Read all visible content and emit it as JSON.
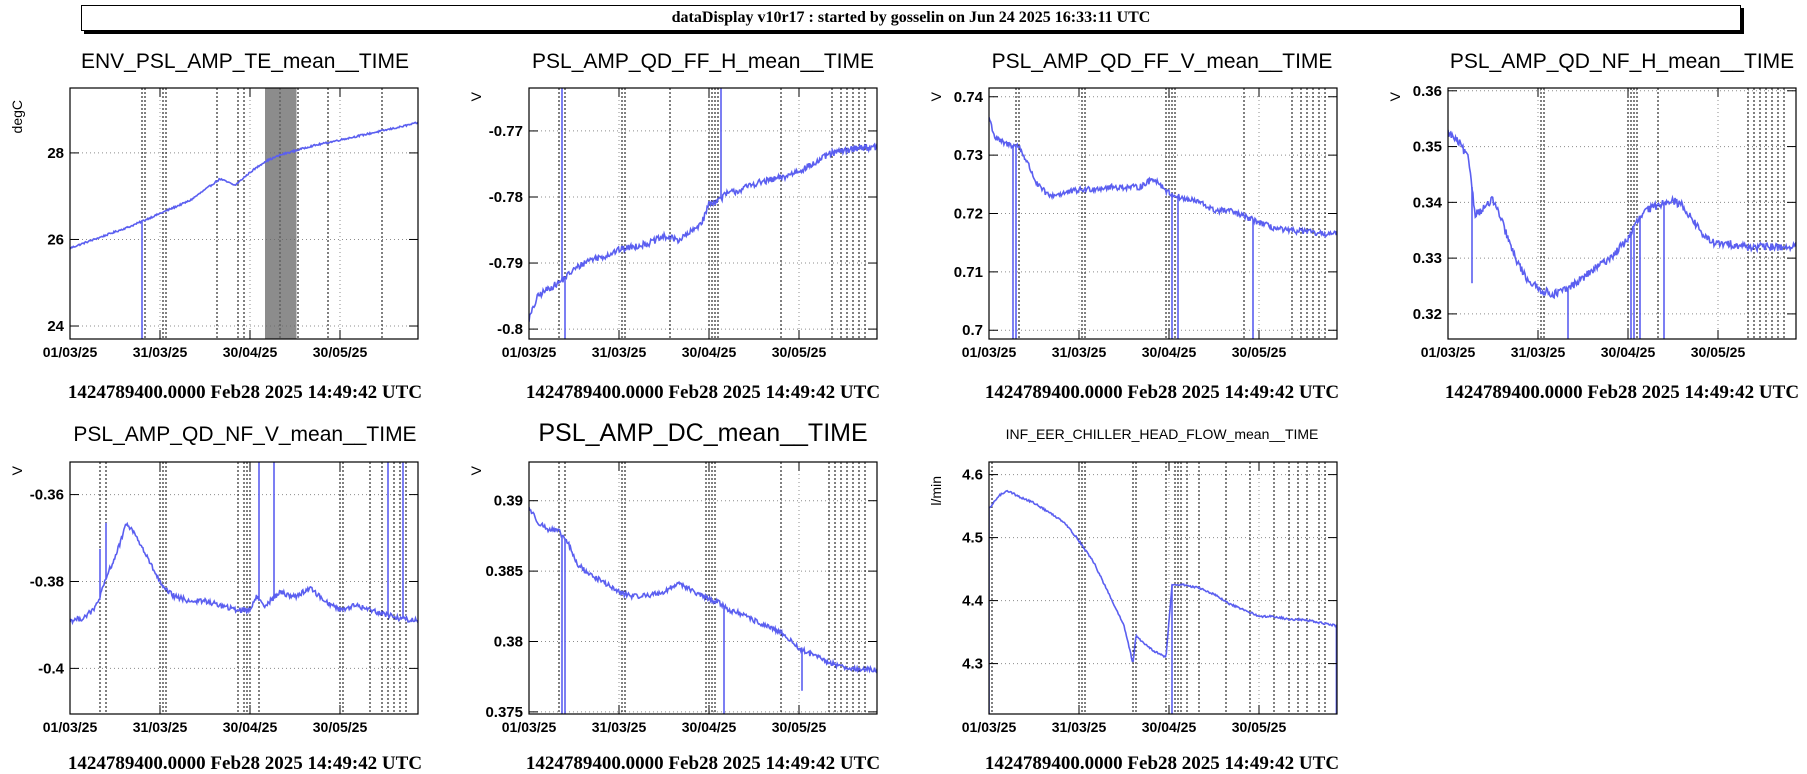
{
  "banner": {
    "text": "dataDisplay v10r17 : started by gosselin on Jun 24 2025 16:33:11 UTC"
  },
  "colors": {
    "line": "#5b5ff0",
    "marker": "#000000",
    "grid": "#8c8c8c",
    "background": "#ffffff"
  },
  "x_axis": {
    "ticks": [
      "01/03/25",
      "31/03/25",
      "30/04/25",
      "30/05/25"
    ],
    "tick_days": [
      0,
      30,
      60,
      90
    ],
    "range_days": [
      0,
      116
    ]
  },
  "footer_text": "1424789400.0000 Feb28 2025 14:49:42 UTC",
  "chart_data": [
    {
      "type": "line",
      "title": "ENV_PSL_AMP_TE_mean__TIME",
      "ylabel": "degC",
      "ylim": [
        23.7,
        29.5
      ],
      "yticks": [
        24,
        26,
        28
      ],
      "ytick_labels": [
        "24",
        "26",
        "28"
      ],
      "grid": true,
      "markers": [
        0,
        24,
        25,
        31,
        32,
        49,
        56,
        58,
        70,
        76,
        86,
        104
      ],
      "shaded": [
        [
          65,
          75.5
        ]
      ],
      "x": [
        0,
        10,
        20,
        30,
        40,
        45,
        50,
        55,
        60,
        65,
        70,
        75,
        80,
        90,
        100,
        110,
        116
      ],
      "values": [
        25.8,
        26.05,
        26.3,
        26.6,
        26.9,
        27.15,
        27.4,
        27.25,
        27.55,
        27.8,
        27.95,
        28.05,
        28.15,
        28.3,
        28.45,
        28.6,
        28.7
      ],
      "spikes": [
        [
          24,
          23.7
        ]
      ],
      "noise": 0.02
    },
    {
      "type": "line",
      "title": "PSL_AMP_QD_FF_H_mean__TIME",
      "ylabel": "V",
      "ylim": [
        -0.8015,
        -0.7635
      ],
      "yticks": [
        -0.8,
        -0.79,
        -0.78,
        -0.77
      ],
      "ytick_labels": [
        "-0.8",
        "-0.79",
        "-0.78",
        "-0.77"
      ],
      "grid": true,
      "markers": [
        0,
        10,
        12,
        31,
        32,
        47,
        60,
        61,
        62,
        63,
        84,
        101,
        104,
        106,
        108,
        110,
        112
      ],
      "x": [
        0,
        3,
        6,
        10,
        15,
        20,
        25,
        30,
        35,
        40,
        45,
        50,
        55,
        58,
        60,
        63,
        66,
        70,
        75,
        80,
        85,
        90,
        95,
        100,
        105,
        110,
        116
      ],
      "values": [
        -0.7985,
        -0.795,
        -0.794,
        -0.793,
        -0.791,
        -0.7895,
        -0.789,
        -0.788,
        -0.7875,
        -0.787,
        -0.786,
        -0.7865,
        -0.785,
        -0.7835,
        -0.781,
        -0.7805,
        -0.7795,
        -0.779,
        -0.778,
        -0.7775,
        -0.777,
        -0.776,
        -0.775,
        -0.7735,
        -0.773,
        -0.7725,
        -0.7725
      ],
      "spikes": [
        [
          11,
          -0.763
        ],
        [
          12,
          -0.8015
        ],
        [
          64,
          -0.763
        ]
      ],
      "noise": 0.0005
    },
    {
      "type": "line",
      "title": "PSL_AMP_QD_FF_V_mean__TIME",
      "ylabel": "V",
      "ylim": [
        0.6985,
        0.7415
      ],
      "yticks": [
        0.7,
        0.71,
        0.72,
        0.73,
        0.74
      ],
      "ytick_labels": [
        "0.7",
        "0.71",
        "0.72",
        "0.73",
        "0.74"
      ],
      "grid": true,
      "markers": [
        0,
        9,
        10,
        31,
        32,
        59,
        60,
        61,
        62,
        85,
        101,
        104,
        106,
        108,
        110,
        112
      ],
      "x": [
        0,
        2,
        5,
        10,
        13,
        16,
        20,
        25,
        30,
        40,
        50,
        55,
        60,
        65,
        70,
        75,
        80,
        85,
        90,
        95,
        100,
        105,
        110,
        116
      ],
      "values": [
        0.7365,
        0.733,
        0.732,
        0.7315,
        0.7285,
        0.725,
        0.723,
        0.7235,
        0.724,
        0.7245,
        0.7245,
        0.726,
        0.7235,
        0.7225,
        0.722,
        0.7205,
        0.7205,
        0.7195,
        0.7185,
        0.7175,
        0.717,
        0.717,
        0.7165,
        0.7165
      ],
      "spikes": [
        [
          8,
          0.6985
        ],
        [
          9,
          0.6985
        ],
        [
          61,
          0.6985
        ],
        [
          63,
          0.6985
        ],
        [
          88,
          0.6985
        ]
      ],
      "noise": 0.0005
    },
    {
      "type": "line",
      "title": "PSL_AMP_QD_NF_H_mean__TIME",
      "ylabel": "V",
      "ylim": [
        0.3155,
        0.3605
      ],
      "yticks": [
        0.32,
        0.33,
        0.34,
        0.35,
        0.36
      ],
      "ytick_labels": [
        "0.32",
        "0.33",
        "0.34",
        "0.35",
        "0.36"
      ],
      "grid": true,
      "markers": [
        0,
        31,
        32,
        60,
        61,
        62,
        63,
        70,
        100,
        102,
        104,
        106,
        108,
        110,
        112
      ],
      "x": [
        0,
        4,
        7,
        9,
        11,
        13,
        15,
        18,
        22,
        26,
        30,
        35,
        40,
        45,
        50,
        55,
        60,
        63,
        66,
        70,
        74,
        78,
        82,
        86,
        90,
        95,
        100,
        105,
        110,
        116
      ],
      "values": [
        0.3525,
        0.3505,
        0.3475,
        0.338,
        0.3385,
        0.3395,
        0.3405,
        0.3365,
        0.3305,
        0.3265,
        0.3245,
        0.3235,
        0.3245,
        0.3265,
        0.3285,
        0.3305,
        0.3335,
        0.3365,
        0.3385,
        0.3395,
        0.3405,
        0.3395,
        0.3365,
        0.3335,
        0.3325,
        0.3325,
        0.332,
        0.332,
        0.332,
        0.332
      ],
      "spikes": [
        [
          8,
          0.3255
        ],
        [
          40,
          0.3155
        ],
        [
          61,
          0.3155
        ],
        [
          62,
          0.3155
        ],
        [
          64,
          0.3155
        ],
        [
          72,
          0.3155
        ]
      ],
      "noise": 0.0007
    },
    {
      "type": "line",
      "title": "PSL_AMP_QD_NF_V_mean__TIME",
      "ylabel": "V",
      "ylim": [
        -0.4105,
        -0.3525
      ],
      "yticks": [
        -0.4,
        -0.38,
        -0.36
      ],
      "ytick_labels": [
        "-0.4",
        "-0.38",
        "-0.36"
      ],
      "grid": true,
      "markers": [
        0,
        10,
        12,
        30,
        31,
        32,
        56,
        58,
        59,
        60,
        63,
        90,
        91,
        100,
        104,
        106,
        108,
        110,
        112
      ],
      "x": [
        0,
        4,
        8,
        10,
        13,
        15,
        17,
        19,
        22,
        25,
        28,
        31,
        35,
        40,
        45,
        50,
        55,
        60,
        62,
        65,
        70,
        75,
        80,
        85,
        90,
        95,
        100,
        105,
        110,
        116
      ],
      "values": [
        -0.389,
        -0.3885,
        -0.3865,
        -0.3835,
        -0.3775,
        -0.3745,
        -0.3705,
        -0.3665,
        -0.3695,
        -0.3735,
        -0.3775,
        -0.3815,
        -0.3835,
        -0.3845,
        -0.3845,
        -0.3855,
        -0.3865,
        -0.3865,
        -0.3835,
        -0.3855,
        -0.3825,
        -0.3835,
        -0.3815,
        -0.3845,
        -0.3865,
        -0.3855,
        -0.3865,
        -0.3875,
        -0.3885,
        -0.389
      ],
      "spikes": [
        [
          10,
          -0.3725
        ],
        [
          12,
          -0.3665
        ],
        [
          63,
          -0.3525
        ],
        [
          68,
          -0.3525
        ],
        [
          106,
          -0.3525
        ],
        [
          111,
          -0.3525
        ]
      ],
      "noise": 0.0006
    },
    {
      "type": "line",
      "title": "PSL_AMP_DC_mean__TIME",
      "ylabel": "V",
      "ylim": [
        0.37485,
        0.39275
      ],
      "yticks": [
        0.375,
        0.38,
        0.385,
        0.39
      ],
      "ytick_labels": [
        "0.375",
        "0.38",
        "0.385",
        "0.39"
      ],
      "grid": true,
      "markers": [
        0,
        10,
        12,
        31,
        32,
        59,
        60,
        61,
        62,
        84,
        100,
        102,
        104,
        106,
        108,
        110,
        112
      ],
      "x": [
        0,
        3,
        6,
        10,
        13,
        16,
        20,
        25,
        30,
        35,
        40,
        45,
        50,
        55,
        60,
        63,
        67,
        70,
        75,
        80,
        85,
        90,
        95,
        100,
        105,
        110,
        116
      ],
      "values": [
        0.3895,
        0.3885,
        0.388,
        0.3878,
        0.387,
        0.3855,
        0.3848,
        0.3842,
        0.3835,
        0.3832,
        0.3833,
        0.3835,
        0.3842,
        0.3835,
        0.383,
        0.3828,
        0.3822,
        0.382,
        0.3815,
        0.381,
        0.3805,
        0.3795,
        0.379,
        0.3785,
        0.3782,
        0.378,
        0.378
      ],
      "spikes": [
        [
          11,
          0.37485
        ],
        [
          12,
          0.37485
        ],
        [
          65,
          0.37485
        ],
        [
          91,
          0.3765
        ]
      ],
      "noise": 0.00018
    },
    {
      "type": "line",
      "title": "INF_EER_CHILLER_HEAD_FLOW_mean__TIME",
      "ylabel": "l/min",
      "ylim": [
        4.22,
        4.62
      ],
      "yticks": [
        4.3,
        4.4,
        4.5,
        4.6
      ],
      "ytick_labels": [
        "4.3",
        "4.4",
        "4.5",
        "4.6"
      ],
      "grid": true,
      "markers": [
        0,
        1,
        30,
        31,
        32,
        48,
        49,
        59,
        62,
        63,
        64,
        66,
        70,
        79,
        87,
        95,
        100,
        103,
        106,
        110,
        112
      ],
      "x": [
        0,
        3,
        6,
        10,
        15,
        20,
        25,
        30,
        35,
        40,
        45,
        48,
        49,
        51,
        55,
        59,
        61,
        65,
        70,
        75,
        80,
        85,
        90,
        95,
        100,
        105,
        110,
        116
      ],
      "values": [
        4.545,
        4.565,
        4.575,
        4.565,
        4.555,
        4.54,
        4.525,
        4.495,
        4.46,
        4.41,
        4.36,
        4.3,
        4.345,
        4.335,
        4.32,
        4.31,
        4.425,
        4.425,
        4.42,
        4.41,
        4.395,
        4.385,
        4.375,
        4.375,
        4.37,
        4.37,
        4.365,
        4.36
      ],
      "spikes": [
        [
          0,
          4.22
        ],
        [
          61,
          4.22
        ],
        [
          115.8,
          4.22
        ]
      ],
      "noise": 0.0015
    }
  ]
}
